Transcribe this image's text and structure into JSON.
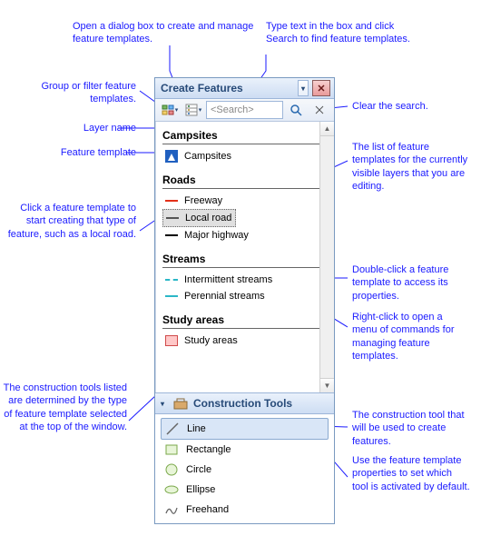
{
  "titlebar": {
    "title": "Create Features"
  },
  "toolbar": {
    "search_placeholder": "<Search>"
  },
  "groups": [
    {
      "name": "Campsites",
      "items": [
        {
          "label": "Campsites",
          "symbol": "campsite"
        }
      ]
    },
    {
      "name": "Roads",
      "items": [
        {
          "label": "Freeway",
          "symbol": "line",
          "color": "#e33019"
        },
        {
          "label": "Local road",
          "symbol": "line",
          "color": "#555555",
          "selected": true
        },
        {
          "label": "Major highway",
          "symbol": "line",
          "color": "#000000"
        }
      ]
    },
    {
      "name": "Streams",
      "items": [
        {
          "label": "Intermittent streams",
          "symbol": "dashline",
          "color": "#2bb7c7"
        },
        {
          "label": "Perennial streams",
          "symbol": "line",
          "color": "#2bb7c7"
        }
      ]
    },
    {
      "name": "Study areas",
      "items": [
        {
          "label": "Study areas",
          "symbol": "rect",
          "fill": "#ffc8c8",
          "stroke": "#d04a4a"
        }
      ]
    }
  ],
  "construction": {
    "title": "Construction Tools",
    "tools": [
      {
        "label": "Line",
        "symbol": "toolline",
        "selected": true
      },
      {
        "label": "Rectangle",
        "symbol": "toolrect"
      },
      {
        "label": "Circle",
        "symbol": "toolcircle"
      },
      {
        "label": "Ellipse",
        "symbol": "toolellipse"
      },
      {
        "label": "Freehand",
        "symbol": "toolfree"
      }
    ]
  },
  "callouts": {
    "open_dialog": "Open a dialog box to create and manage feature templates.",
    "type_search": "Type text in the box and click Search to find feature templates.",
    "group_filter": "Group or filter feature templates.",
    "clear_search": "Clear the search.",
    "layer_name": "Layer name",
    "feature_tmpl": "Feature template",
    "click_tmpl": "Click a feature template to start creating that type of feature, such as a local road.",
    "list_tmpls": "The list of feature templates for the currently visible layers that you are editing.",
    "dblclk": "Double-click a feature template to access its properties.",
    "rclick": "Right-click to open a menu of commands for managing feature templates.",
    "ct_determined": "The construction tools listed are determined by the type of feature template selected at the top of the window.",
    "ct_used": "The construction tool that will be used to create features.",
    "ct_default": "Use the feature template properties to set which tool is activated by default."
  },
  "styling": {
    "callout_color": "#1a1aff",
    "titlebar_grad_top": "#eaf1fb",
    "titlebar_grad_bot": "#cdddf3",
    "border_color": "#7a9ac0",
    "selected_tool_bg": "#d9e6f7",
    "selected_tmpl_bg": "#e0e0e0"
  }
}
